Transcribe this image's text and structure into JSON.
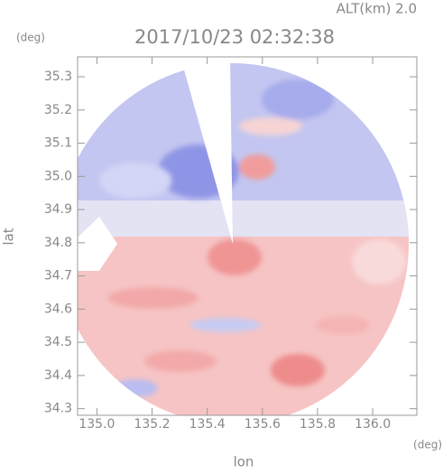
{
  "chart_data": {
    "type": "radar-field",
    "title": "2017/10/23 02:32:38",
    "annotation": "ALT(km)  2.0",
    "y_unit": "(deg)",
    "x_unit": "(deg)",
    "xlabel": "lon",
    "ylabel": "lat",
    "xlim": [
      134.93,
      136.16
    ],
    "xticks": [
      {
        "value": 135.0,
        "label": "135.0"
      },
      135.2,
      135.4,
      135.6,
      135.8,
      {
        "value": 136.0,
        "label": "136.0"
      }
    ],
    "ylim": [
      34.28,
      35.36
    ],
    "yticks": [
      34.3,
      34.4,
      34.5,
      34.6,
      34.7,
      34.8,
      34.9,
      {
        "value": 35.0,
        "label": "35.0"
      },
      35.1,
      35.2,
      35.3
    ]
  }
}
